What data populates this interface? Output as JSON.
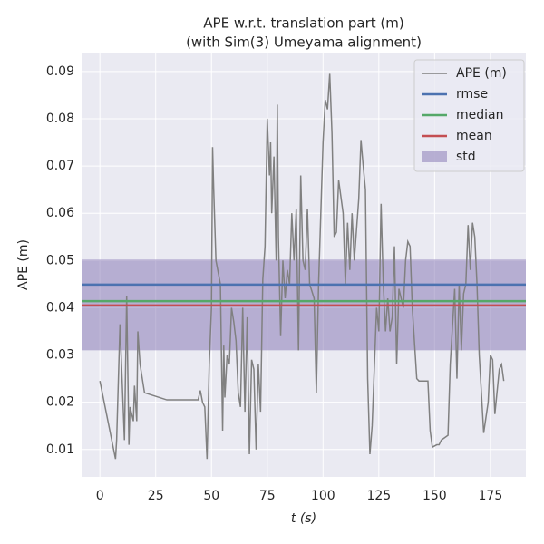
{
  "chart_data": {
    "type": "line",
    "title": [
      "APE w.r.t. translation part (m)",
      "(with Sim(3) Umeyama alignment)"
    ],
    "xlabel": "t (s)",
    "ylabel": "APE (m)",
    "xlim": [
      -8.2,
      190.9
    ],
    "ylim": [
      0.0042,
      0.094
    ],
    "xticks": [
      0,
      25,
      50,
      75,
      100,
      125,
      150,
      175
    ],
    "yticks": [
      0.01,
      0.02,
      0.03,
      0.04,
      0.05,
      0.06,
      0.07,
      0.08,
      0.09
    ],
    "grid": true,
    "legend": "upper right",
    "x": [
      0,
      7,
      7.5,
      9,
      11,
      12,
      13,
      13.5,
      15,
      15.5,
      16.5,
      17,
      18,
      20,
      30,
      44,
      45,
      46,
      47,
      48,
      49,
      50,
      50.5,
      51,
      52,
      54,
      55,
      55.5,
      56,
      57,
      58,
      59,
      60,
      61,
      62,
      63,
      64,
      65,
      66,
      67,
      68,
      69,
      70,
      71,
      72,
      73,
      74,
      75,
      76,
      76.5,
      77,
      78,
      79,
      79.5,
      80,
      81,
      82,
      83,
      84,
      85,
      86,
      87,
      88,
      89,
      90,
      91,
      92,
      93,
      94,
      96,
      97,
      98,
      100,
      101,
      102,
      103,
      104,
      105,
      106,
      107,
      109,
      110,
      111,
      112,
      113,
      114,
      116,
      117,
      118,
      119,
      120,
      121,
      122,
      124,
      125,
      126,
      127,
      128,
      129,
      130,
      131,
      132,
      133,
      134,
      136,
      137,
      138,
      139,
      140,
      142,
      143,
      147,
      148,
      149,
      151,
      152,
      153,
      156,
      157,
      159,
      160,
      161,
      162,
      163,
      164,
      165,
      166,
      167,
      168,
      169,
      170,
      172,
      174,
      175,
      176,
      177,
      179,
      180,
      181
    ],
    "series": [
      {
        "name": "APE (m)",
        "color": "#808080",
        "values": [
          0.0245,
          0.008,
          0.012,
          0.0365,
          0.012,
          0.0425,
          0.011,
          0.019,
          0.016,
          0.0235,
          0.016,
          0.035,
          0.028,
          0.022,
          0.0205,
          0.0205,
          0.0225,
          0.02,
          0.019,
          0.008,
          0.028,
          0.04,
          0.074,
          0.065,
          0.05,
          0.045,
          0.014,
          0.032,
          0.021,
          0.03,
          0.028,
          0.04,
          0.037,
          0.033,
          0.022,
          0.019,
          0.04,
          0.018,
          0.038,
          0.009,
          0.029,
          0.027,
          0.01,
          0.028,
          0.018,
          0.046,
          0.053,
          0.08,
          0.068,
          0.075,
          0.06,
          0.072,
          0.05,
          0.083,
          0.055,
          0.034,
          0.05,
          0.042,
          0.048,
          0.045,
          0.06,
          0.05,
          0.061,
          0.031,
          0.068,
          0.05,
          0.048,
          0.061,
          0.045,
          0.042,
          0.022,
          0.045,
          0.075,
          0.084,
          0.082,
          0.0895,
          0.077,
          0.055,
          0.056,
          0.067,
          0.06,
          0.045,
          0.058,
          0.048,
          0.06,
          0.05,
          0.063,
          0.0755,
          0.07,
          0.065,
          0.025,
          0.009,
          0.015,
          0.04,
          0.035,
          0.062,
          0.045,
          0.035,
          0.042,
          0.035,
          0.038,
          0.053,
          0.028,
          0.044,
          0.04,
          0.05,
          0.054,
          0.053,
          0.04,
          0.025,
          0.0245,
          0.0245,
          0.014,
          0.0105,
          0.011,
          0.011,
          0.012,
          0.013,
          0.028,
          0.044,
          0.025,
          0.045,
          0.031,
          0.043,
          0.045,
          0.0575,
          0.048,
          0.058,
          0.055,
          0.045,
          0.03,
          0.0135,
          0.02,
          0.03,
          0.029,
          0.0175,
          0.027,
          0.028,
          0.0245
        ]
      }
    ],
    "hlines": [
      {
        "name": "rmse",
        "color": "#4c72b0",
        "value": 0.0449
      },
      {
        "name": "median",
        "color": "#55a868",
        "value": 0.0414
      },
      {
        "name": "mean",
        "color": "#c44e52",
        "value": 0.0405
      }
    ],
    "band": {
      "name": "std",
      "color": "#8172b2",
      "values": [
        0.031,
        0.0502
      ]
    }
  }
}
